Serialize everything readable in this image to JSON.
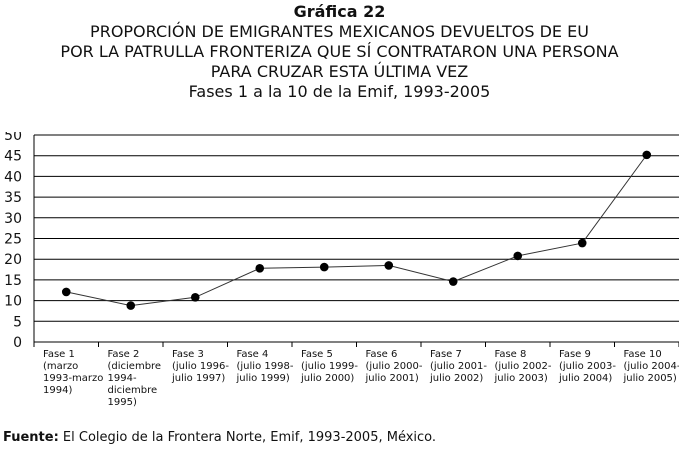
{
  "figure": {
    "label": "Gráfica 22",
    "title_lines": [
      "PROPORCIÓN DE EMIGRANTES MEXICANOS DEVUELTOS DE EU",
      "POR LA PATRULLA FRONTERIZA QUE SÍ CONTRATARON UNA PERSONA",
      "PARA CRUZAR ESTA ÚLTIMA VEZ"
    ],
    "subtitle": "Fases 1 a la 10 de la Emif, 1993-2005",
    "source_label": "Fuente:",
    "source_text": " El Colegio de la Frontera Norte, Emif, 1993-2005, México."
  },
  "chart_data": {
    "type": "line",
    "title": "PROPORCIÓN DE EMIGRANTES MEXICANOS DEVUELTOS DE EU POR LA PATRULLA FRONTERIZA QUE SÍ CONTRATARON UNA PERSONA PARA CRUZAR ESTA ÚLTIMA VEZ",
    "subtitle": "Fases 1 a la 10 de la Emif, 1993-2005",
    "xlabel": "",
    "ylabel": "",
    "ylim": [
      0,
      50
    ],
    "yticks": [
      0,
      5,
      10,
      15,
      20,
      25,
      30,
      35,
      40,
      45,
      50
    ],
    "grid": true,
    "legend": "none",
    "categories": [
      [
        "Fase 1",
        "(marzo",
        "1993-marzo",
        "1994)"
      ],
      [
        "Fase 2",
        "(diciembre",
        "1994-",
        "diciembre",
        "1995)"
      ],
      [
        "Fase 3",
        "(julio 1996-",
        "julio 1997)"
      ],
      [
        "Fase 4",
        "(julio 1998-",
        "julio 1999)"
      ],
      [
        "Fase 5",
        "(julio 1999-",
        "julio 2000)"
      ],
      [
        "Fase 6",
        "(julio 2000-",
        "julio 2001)"
      ],
      [
        "Fase 7",
        "(julio 2001-",
        "julio 2002)"
      ],
      [
        "Fase 8",
        "(julio 2002-",
        "julio 2003)"
      ],
      [
        "Fase 9",
        "(julio 2003-",
        "julio 2004)"
      ],
      [
        "Fase 10",
        "(julio 2004-",
        "julio 2005)"
      ]
    ],
    "series": [
      {
        "values": [
          12.1,
          8.8,
          10.8,
          17.8,
          18.1,
          18.5,
          14.6,
          20.8,
          23.9,
          45.2
        ]
      }
    ],
    "line_color": "#333333",
    "marker_color": "#000000"
  }
}
